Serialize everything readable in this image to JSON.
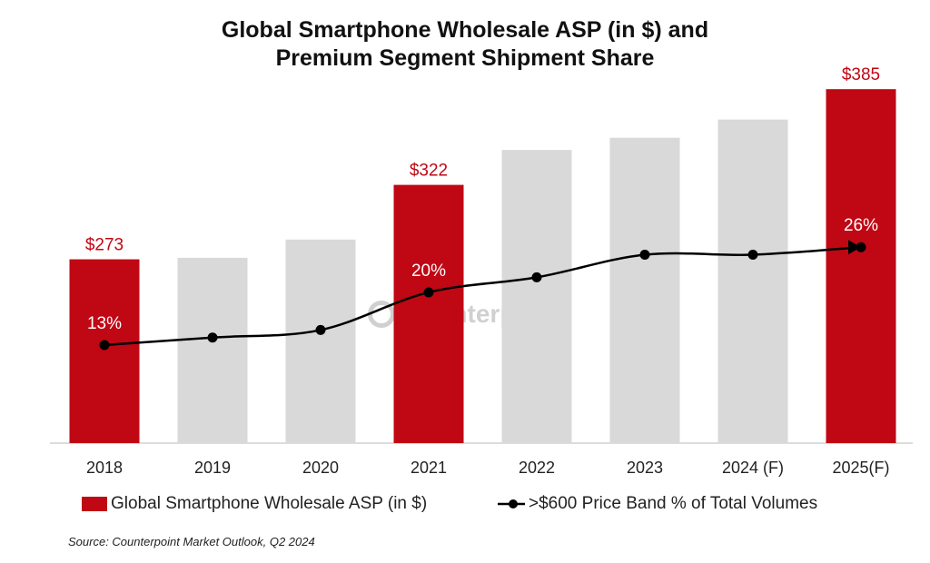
{
  "chart_data": {
    "type": "bar+line",
    "title": "Global Smartphone Wholesale ASP (in $) and\nPremium Segment Shipment Share",
    "categories": [
      "2018",
      "2019",
      "2020",
      "2021",
      "2022",
      "2023",
      "2024 (F)",
      "2025(F)"
    ],
    "series": [
      {
        "name": "Global Smartphone Wholesale ASP (in $)",
        "type": "bar",
        "values": [
          273,
          274,
          286,
          322,
          345,
          353,
          365,
          385
        ],
        "labels": [
          "$273",
          null,
          null,
          "$322",
          null,
          null,
          null,
          "$385"
        ],
        "highlight": [
          true,
          false,
          false,
          true,
          false,
          false,
          false,
          true
        ]
      },
      {
        "name": ">$600 Price Band % of Total Volumes",
        "type": "line",
        "values": [
          13,
          14,
          15,
          20,
          22,
          25,
          25,
          26
        ],
        "labels": [
          "13%",
          null,
          null,
          "20%",
          null,
          null,
          null,
          "26%"
        ]
      }
    ],
    "bar_ylim": [
      152,
      400
    ],
    "line_ylim": [
      0,
      30
    ],
    "grid": false,
    "legend_position": "bottom",
    "colors": {
      "highlight": "#C00714",
      "bar": "#D9D9D9",
      "line": "#000000",
      "label_red": "#C00714",
      "label_white": "#FFFFFF"
    }
  },
  "watermark": "Counterpoint",
  "source": "Source: Counterpoint Market Outlook, Q2 2024"
}
